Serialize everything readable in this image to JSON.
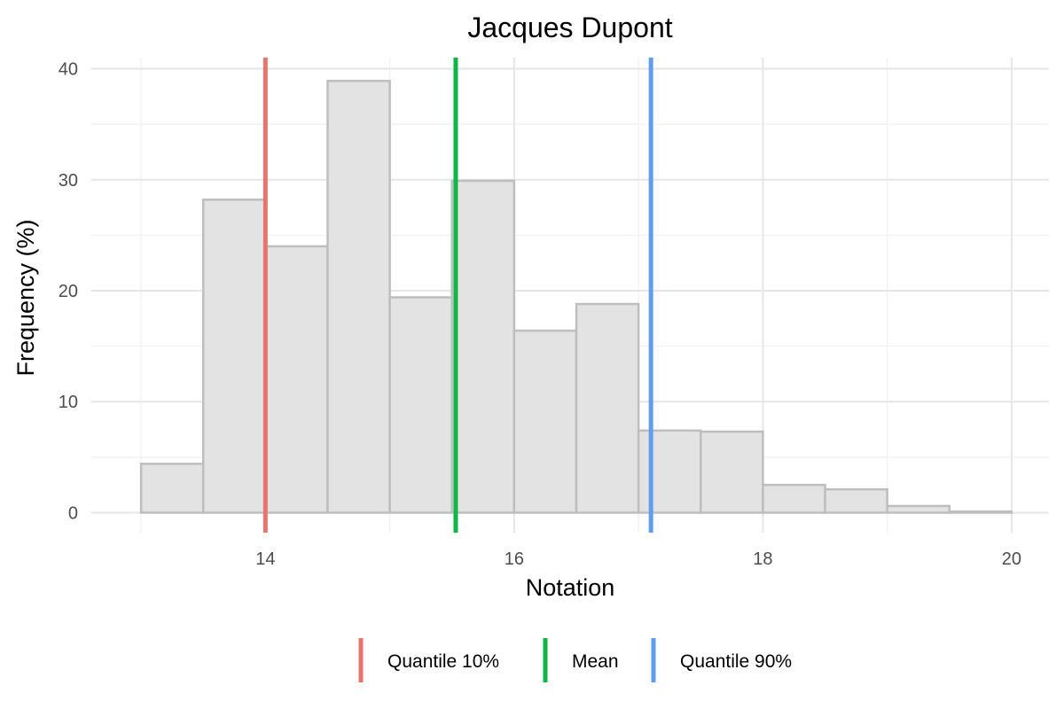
{
  "chart_data": {
    "type": "bar",
    "title": "Jacques Dupont",
    "xlabel": "Notation",
    "ylabel": "Frequency (%)",
    "xlim": [
      12.6,
      20.3
    ],
    "ylim": [
      -1.8,
      41
    ],
    "x_ticks": [
      14,
      16,
      18,
      20
    ],
    "y_ticks": [
      0,
      10,
      20,
      30,
      40
    ],
    "grid": true,
    "bar_fill": "#e3e3e3",
    "bar_stroke": "#bebebe",
    "bins": [
      {
        "x0": 13.0,
        "x1": 13.5,
        "value": 4.4
      },
      {
        "x0": 13.5,
        "x1": 14.0,
        "value": 28.2
      },
      {
        "x0": 14.0,
        "x1": 14.5,
        "value": 24.0
      },
      {
        "x0": 14.5,
        "x1": 15.0,
        "value": 38.9
      },
      {
        "x0": 15.0,
        "x1": 15.5,
        "value": 19.4
      },
      {
        "x0": 15.5,
        "x1": 16.0,
        "value": 29.9
      },
      {
        "x0": 16.0,
        "x1": 16.5,
        "value": 16.4
      },
      {
        "x0": 16.5,
        "x1": 17.0,
        "value": 18.8
      },
      {
        "x0": 17.0,
        "x1": 17.5,
        "value": 7.4
      },
      {
        "x0": 17.5,
        "x1": 18.0,
        "value": 7.3
      },
      {
        "x0": 18.0,
        "x1": 18.5,
        "value": 2.5
      },
      {
        "x0": 18.5,
        "x1": 19.0,
        "value": 2.1
      },
      {
        "x0": 19.0,
        "x1": 19.5,
        "value": 0.6
      },
      {
        "x0": 19.5,
        "x1": 20.0,
        "value": 0.1
      }
    ],
    "reference_lines": [
      {
        "name": "Quantile 10%",
        "x": 14.0,
        "color": "#e8756b"
      },
      {
        "name": "Mean",
        "x": 15.53,
        "color": "#0fb545"
      },
      {
        "name": "Quantile 90%",
        "x": 17.1,
        "color": "#629ced"
      }
    ],
    "legend": {
      "position": "bottom",
      "items": [
        "Quantile 10%",
        "Mean",
        "Quantile 90%"
      ]
    }
  }
}
